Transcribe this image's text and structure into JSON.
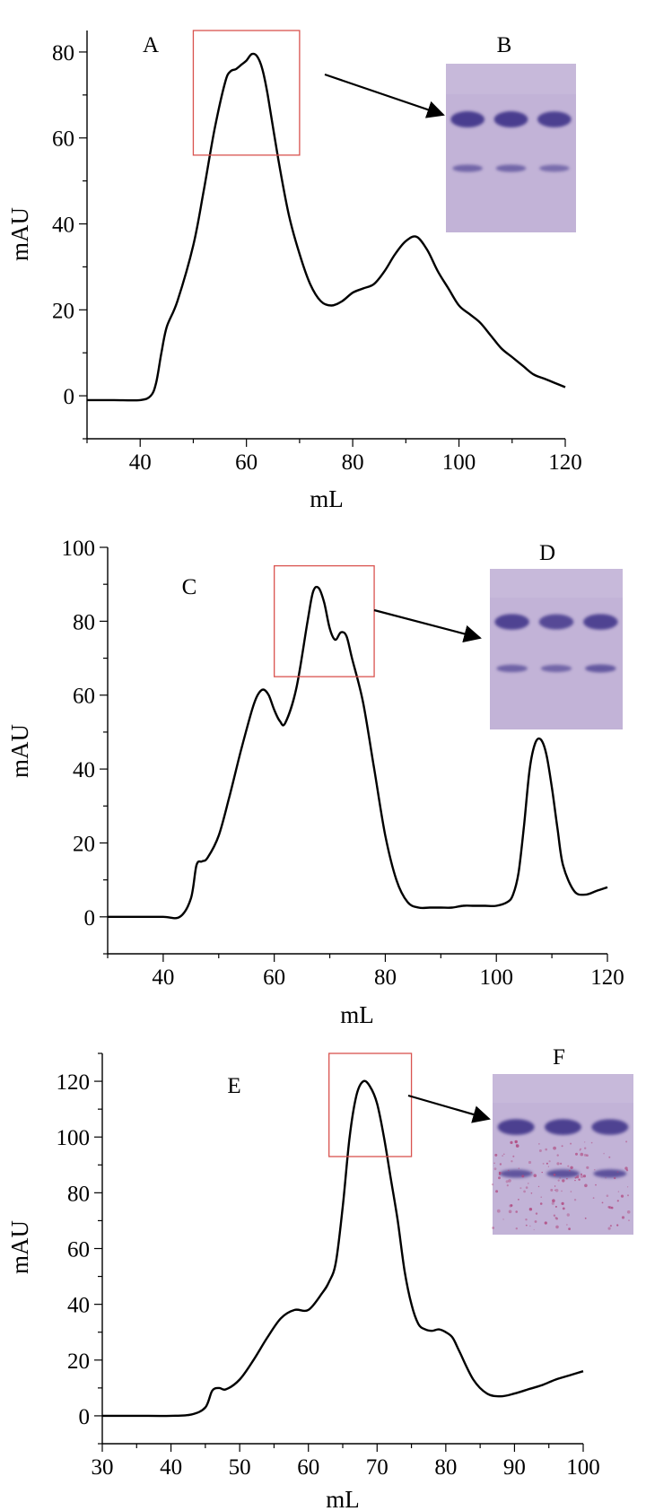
{
  "chart_data": [
    {
      "type": "line",
      "panel_label": "A",
      "gel_label": "B",
      "xlabel": "mL",
      "ylabel": "mAU",
      "xlim": [
        30,
        120
      ],
      "ylim": [
        -10,
        85
      ],
      "xticks": [
        "40",
        "60",
        "80",
        "100",
        "120"
      ],
      "yticks": [
        "0",
        "20",
        "40",
        "60",
        "80"
      ],
      "grid": false,
      "x": [
        30,
        35,
        40,
        42,
        43,
        44,
        45,
        47,
        50,
        52,
        54,
        56,
        57,
        58,
        59,
        60,
        61,
        62,
        63,
        64,
        66,
        68,
        70,
        72,
        74,
        76,
        78,
        80,
        82,
        84,
        86,
        88,
        90,
        92,
        94,
        96,
        98,
        100,
        102,
        104,
        106,
        108,
        110,
        112,
        114,
        116,
        118,
        120
      ],
      "y": [
        -1,
        -1,
        -1,
        0,
        3,
        10,
        16,
        22,
        35,
        48,
        62,
        73,
        75.5,
        76,
        77,
        78,
        79.5,
        79,
        76,
        70,
        55,
        42,
        33,
        26,
        22,
        21,
        22,
        24,
        25,
        26,
        29,
        33,
        36,
        37,
        34,
        29,
        25,
        21,
        19,
        17,
        14,
        11,
        9,
        7,
        5,
        4,
        3,
        2
      ],
      "highlight_range": [
        50,
        70,
        56,
        85
      ],
      "gel": {
        "lanes": 3,
        "band_strength": [
          1.0,
          1.0,
          0.95
        ],
        "band2_strength": [
          0.55,
          0.55,
          0.45
        ],
        "speckled": false
      }
    },
    {
      "type": "line",
      "panel_label": "C",
      "gel_label": "D",
      "xlabel": "mL",
      "ylabel": "mAU",
      "xlim": [
        30,
        120
      ],
      "ylim": [
        -10,
        100
      ],
      "xticks": [
        "40",
        "60",
        "80",
        "100",
        "120"
      ],
      "yticks": [
        "0",
        "20",
        "40",
        "60",
        "80",
        "100"
      ],
      "grid": false,
      "x": [
        30,
        35,
        40,
        43,
        45,
        46,
        47,
        48,
        50,
        52,
        54,
        56,
        57,
        58,
        59,
        60,
        61,
        62,
        64,
        66,
        67,
        68,
        69,
        70,
        71,
        72,
        73,
        74,
        76,
        78,
        80,
        82,
        84,
        86,
        88,
        90,
        92,
        94,
        96,
        98,
        100,
        102,
        103,
        104,
        105,
        106,
        107,
        108,
        109,
        110,
        111,
        112,
        114,
        116,
        118,
        120
      ],
      "y": [
        0,
        0,
        0,
        0,
        5,
        14,
        15,
        16,
        22,
        33,
        45,
        56,
        60,
        61.5,
        60,
        56,
        53,
        52.5,
        62,
        80,
        88,
        89,
        85,
        78,
        75,
        77,
        76,
        70,
        58,
        40,
        22,
        10,
        4,
        2.5,
        2.5,
        2.5,
        2.5,
        3,
        3,
        3,
        3,
        4,
        6,
        12,
        25,
        40,
        47,
        48,
        44,
        35,
        24,
        14,
        7,
        6,
        7,
        8
      ],
      "highlight_range": [
        60,
        78,
        65,
        95
      ],
      "gel": {
        "lanes": 3,
        "band_strength": [
          0.9,
          0.8,
          0.9
        ],
        "band2_strength": [
          0.6,
          0.55,
          0.75
        ],
        "speckled": false
      }
    },
    {
      "type": "line",
      "panel_label": "E",
      "gel_label": "F",
      "xlabel": "mL",
      "ylabel": "mAU",
      "xlim": [
        30,
        100
      ],
      "ylim": [
        -10,
        130
      ],
      "xticks": [
        "30",
        "40",
        "50",
        "60",
        "70",
        "80",
        "90",
        "100"
      ],
      "yticks": [
        "0",
        "20",
        "40",
        "60",
        "80",
        "100",
        "120"
      ],
      "grid": false,
      "x": [
        30,
        35,
        40,
        43,
        45,
        46,
        47,
        48,
        50,
        52,
        54,
        56,
        58,
        60,
        62,
        63,
        64,
        65,
        66,
        67,
        68,
        69,
        70,
        71,
        72,
        73,
        74,
        75,
        76,
        77,
        78,
        79,
        80,
        81,
        82,
        84,
        86,
        88,
        90,
        92,
        94,
        96,
        98,
        100
      ],
      "y": [
        0,
        0,
        0,
        0.5,
        3,
        9,
        10,
        9.5,
        13,
        20,
        28,
        35,
        38,
        38,
        44,
        48,
        55,
        75,
        100,
        115,
        120,
        118,
        112,
        100,
        85,
        70,
        52,
        40,
        33,
        31,
        30.5,
        31,
        30,
        28,
        23,
        13,
        8,
        7,
        8,
        9.5,
        11,
        13,
        14.5,
        16
      ],
      "highlight_range": [
        63,
        75,
        93,
        130
      ],
      "gel": {
        "lanes": 3,
        "band_strength": [
          0.95,
          0.95,
          0.9
        ],
        "band2_strength": [
          0.8,
          0.85,
          0.85
        ],
        "speckled": true
      }
    }
  ]
}
